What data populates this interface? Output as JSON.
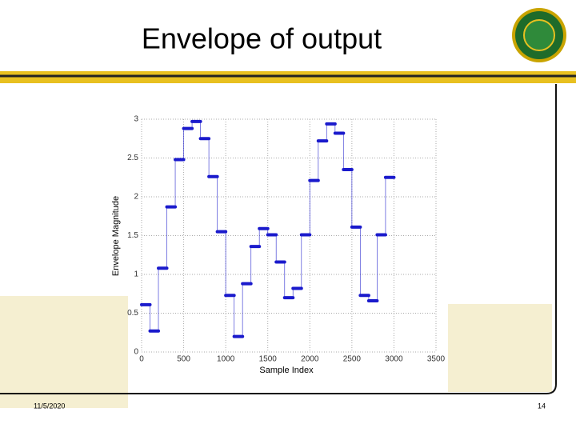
{
  "slide": {
    "title": "Envelope of output",
    "date": "11/5/2020",
    "page": "14"
  },
  "chart_data": {
    "type": "step",
    "xlabel": "Sample Index",
    "ylabel": "Envelope Magnitude",
    "x": [
      0,
      100,
      200,
      300,
      400,
      500,
      600,
      700,
      800,
      900,
      1000,
      1100,
      1200,
      1300,
      1400,
      1500,
      1600,
      1700,
      1800,
      1900,
      2000,
      2100,
      2200,
      2300,
      2400,
      2500,
      2600,
      2700,
      2800,
      2900
    ],
    "values": [
      0.61,
      0.27,
      1.08,
      1.87,
      2.48,
      2.88,
      2.97,
      2.75,
      2.26,
      1.55,
      0.73,
      0.2,
      0.88,
      1.36,
      1.59,
      1.51,
      1.16,
      0.7,
      0.82,
      1.51,
      2.21,
      2.72,
      2.94,
      2.82,
      2.35,
      1.61,
      0.73,
      0.66,
      1.51,
      2.25
    ],
    "color": "#1a1acc",
    "xlim": [
      0,
      3500
    ],
    "xticks": [
      0,
      500,
      1000,
      1500,
      2000,
      2500,
      3000,
      3500
    ],
    "ylim": [
      0,
      3
    ],
    "yticks": [
      0,
      0.5,
      1,
      1.5,
      2,
      2.5,
      3
    ],
    "grid": true
  }
}
